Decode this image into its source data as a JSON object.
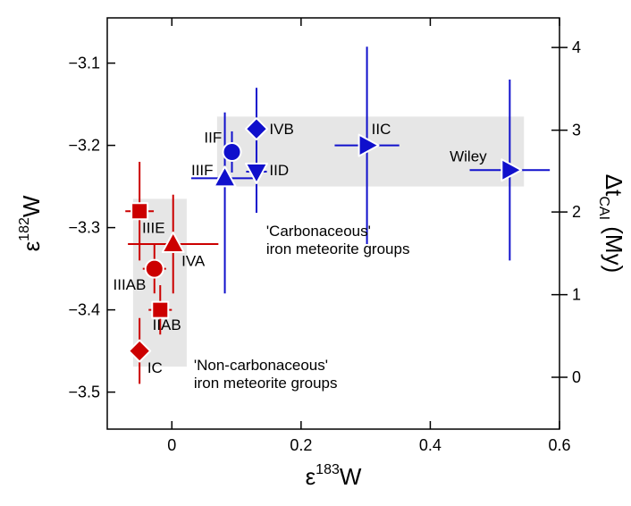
{
  "chart_data": {
    "type": "scatter",
    "xlabel": {
      "base": "ε",
      "sup": "183",
      "tail": "W"
    },
    "ylabel": {
      "base": "ε",
      "sup": "182",
      "tail": "W"
    },
    "y2label": {
      "base": "Δt",
      "sub": "CAI",
      "tail": " (My)"
    },
    "xlim": [
      -0.1,
      0.6
    ],
    "ylim": [
      -3.545,
      -3.045
    ],
    "xticks": [
      0,
      0.2,
      0.4,
      0.6
    ],
    "xtick_labels": [
      "0",
      "0.2",
      "0.4",
      "0.6"
    ],
    "yticks": [
      -3.5,
      -3.4,
      -3.3,
      -3.2,
      -3.1
    ],
    "ytick_labels": [
      "−3.5",
      "−3.4",
      "−3.3",
      "−3.2",
      "−3.1"
    ],
    "y2ticks": [
      {
        "label": "0",
        "eps182": -3.482
      },
      {
        "label": "1",
        "eps182": -3.3815
      },
      {
        "label": "2",
        "eps182": -3.281
      },
      {
        "label": "3",
        "eps182": -3.1815
      },
      {
        "label": "4",
        "eps182": -3.081
      }
    ],
    "colors": {
      "carbonaceous": "#1010cc",
      "noncarbonaceous": "#cc0000",
      "region": "#e6e6e6"
    },
    "regions": [
      {
        "name": "carbonaceous-region",
        "x": [
          0.07,
          0.545
        ],
        "y": [
          -3.25,
          -3.165
        ],
        "label_lines": [
          "'Carbonaceous'",
          "iron meteorite groups"
        ],
        "label_x": 0.146,
        "label_y": -3.31
      },
      {
        "name": "noncarbonaceous-region",
        "x": [
          -0.06,
          0.023
        ],
        "y": [
          -3.469,
          -3.265
        ],
        "label_lines": [
          "'Non-carbonaceous'",
          "iron meteorite groups"
        ],
        "label_x": 0.034,
        "label_y": -3.473
      }
    ],
    "series": [
      {
        "name": "Carbonaceous",
        "color_key": "carbonaceous",
        "points": [
          {
            "label": "IIF",
            "x": 0.093,
            "y": -3.208,
            "xerr": 0.013,
            "yerr_lo": 0.025,
            "yerr_hi": 0.025,
            "marker": "circle",
            "label_x": 0.05,
            "label_y": -3.19
          },
          {
            "label": "IVB",
            "x": 0.131,
            "y": -3.18,
            "xerr": 0.013,
            "yerr_lo": 0.025,
            "yerr_hi": 0.05,
            "marker": "diamond",
            "label_x": 0.151,
            "label_y": -3.18
          },
          {
            "label": "IIIF",
            "x": 0.082,
            "y": -3.24,
            "xerr": 0.052,
            "yerr_lo": 0.14,
            "yerr_hi": 0.08,
            "marker": "triangle-up",
            "label_x": 0.03,
            "label_y": -3.23
          },
          {
            "label": "IID",
            "x": 0.131,
            "y": -3.232,
            "xerr": 0.016,
            "yerr_lo": 0.05,
            "yerr_hi": 0.05,
            "marker": "triangle-down",
            "label_x": 0.151,
            "label_y": -3.23
          },
          {
            "label": "IIC",
            "x": 0.302,
            "y": -3.2,
            "xerr": 0.05,
            "yerr_lo": 0.12,
            "yerr_hi": 0.12,
            "marker": "triangle-right",
            "label_x": 0.309,
            "label_y": -3.18
          },
          {
            "label": "Wiley",
            "x": 0.523,
            "y": -3.23,
            "xerr": 0.062,
            "yerr_lo": 0.11,
            "yerr_hi": 0.11,
            "marker": "triangle-right",
            "label_x": 0.43,
            "label_y": -3.213
          }
        ]
      },
      {
        "name": "Non-carbonaceous",
        "color_key": "noncarbonaceous",
        "points": [
          {
            "label": "IIIE",
            "x": -0.05,
            "y": -3.28,
            "xerr": 0.022,
            "yerr_lo": 0.06,
            "yerr_hi": 0.06,
            "marker": "square",
            "label_x": -0.046,
            "label_y": -3.3
          },
          {
            "label": "IVA",
            "x": 0.002,
            "y": -3.32,
            "xerr": 0.07,
            "yerr_lo": 0.06,
            "yerr_hi": 0.06,
            "marker": "triangle-up",
            "label_x": 0.015,
            "label_y": -3.34
          },
          {
            "label": "IIIAB",
            "x": -0.027,
            "y": -3.35,
            "xerr": 0.018,
            "yerr_lo": 0.03,
            "yerr_hi": 0.03,
            "marker": "circle",
            "label_x": -0.091,
            "label_y": -3.369
          },
          {
            "label": "IIAB",
            "x": -0.018,
            "y": -3.4,
            "xerr": 0.018,
            "yerr_lo": 0.03,
            "yerr_hi": 0.03,
            "marker": "square",
            "label_x": -0.03,
            "label_y": -3.418
          },
          {
            "label": "IC",
            "x": -0.05,
            "y": -3.45,
            "xerr": 0.005,
            "yerr_lo": 0.04,
            "yerr_hi": 0.04,
            "marker": "diamond",
            "label_x": -0.038,
            "label_y": -3.47
          }
        ]
      }
    ]
  }
}
